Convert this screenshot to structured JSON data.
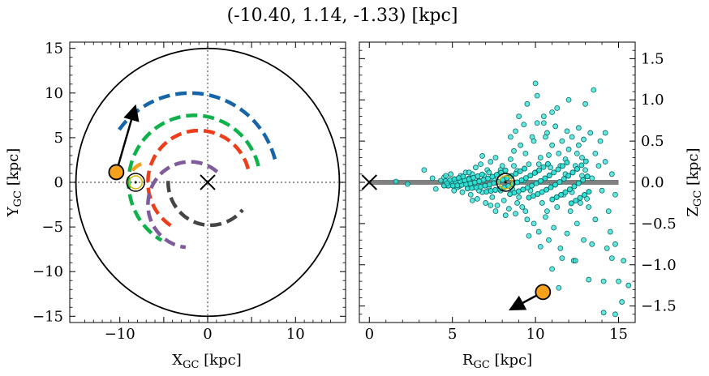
{
  "chart_data": [
    {
      "type": "line",
      "panel": "left",
      "suptitle": "(-10.40, 1.14, -1.33) [kpc]",
      "xlabel": "X",
      "xlabel_sub": "GC",
      "xlabel_unit": " [kpc]",
      "ylabel": "Y",
      "ylabel_sub": "GC",
      "ylabel_unit": " [kpc]",
      "xlim": [
        -15.7,
        15.7
      ],
      "ylim": [
        -15.7,
        15.7
      ],
      "xticks": [
        -10,
        -5,
        0,
        5,
        10
      ],
      "yticks": [
        -15,
        -10,
        -5,
        0,
        5,
        10,
        15
      ],
      "xtick_labels": [
        "−10",
        "0",
        "10"
      ],
      "ytick_labels": [
        "15",
        "10",
        "5",
        "0",
        "−5",
        "−10",
        "−15"
      ],
      "boundary_circle_radius": 15,
      "crosshair_lines": {
        "x": 0,
        "y": 0,
        "style": "dotted"
      },
      "galactic_center_marker": {
        "x": 0,
        "y": 0,
        "marker": "X"
      },
      "sun_marker": {
        "x": -8.2,
        "y": 0,
        "marker": "circled-dot"
      },
      "object_marker": {
        "x": -10.4,
        "y": 1.14,
        "color": "#f5a11c"
      },
      "velocity_arrow": {
        "from": [
          -10.4,
          1.14
        ],
        "to": [
          -8.3,
          8.3
        ]
      },
      "series": [
        {
          "color": "#1565a8",
          "r": 10.0,
          "theta_deg": [
            15,
            145
          ],
          "center": [
            -2.0,
            0
          ]
        },
        {
          "color": "#0fb24a",
          "r": 7.5,
          "theta_deg": [
            14,
            240
          ],
          "center": [
            -1.5,
            0
          ]
        },
        {
          "color": "#f5a11c",
          "r": 2.2,
          "theta_deg": [
            110,
            150
          ],
          "center": [
            -6.8,
            0
          ]
        },
        {
          "color": "#ee3d1a",
          "r": 5.8,
          "theta_deg": [
            15,
            240
          ],
          "center": [
            -1.0,
            0
          ]
        },
        {
          "color": "#7f5a9c",
          "r": 4.8,
          "theta_deg": [
            50,
            265
          ],
          "center": [
            -2.0,
            -2.5
          ]
        },
        {
          "color": "#454545",
          "r": 4.8,
          "theta_deg": [
            178,
            320
          ],
          "center": [
            0.3,
            0
          ]
        }
      ]
    },
    {
      "type": "scatter",
      "panel": "right",
      "xlabel": "R",
      "xlabel_sub": "GC",
      "xlabel_unit": " [kpc]",
      "ylabel": "Z",
      "ylabel_sub": "GC",
      "ylabel_unit": " [kpc]",
      "xlim": [
        -0.6,
        16.0
      ],
      "ylim": [
        -1.7,
        1.7
      ],
      "xticks": [
        0,
        5,
        10,
        15
      ],
      "yticks": [
        -1.5,
        -1.0,
        -0.5,
        0.0,
        0.5,
        1.0,
        1.5
      ],
      "xtick_labels": [
        "0",
        "5",
        "10",
        "15"
      ],
      "ytick_labels": [
        "1.5",
        "1.0",
        "0.5",
        "0.0",
        "−0.5",
        "−1.0",
        "−1.5"
      ],
      "disk_line": {
        "x": [
          0,
          15
        ],
        "y": 0,
        "color": "#808080"
      },
      "galactic_center_marker": {
        "x": 0,
        "y": 0,
        "marker": "X"
      },
      "sun_marker": {
        "x": 8.2,
        "y": 0,
        "marker": "circled-dot"
      },
      "object_marker": {
        "x": 10.45,
        "y": -1.33,
        "color": "#f5a11c"
      },
      "velocity_arrow": {
        "from": [
          10.45,
          -1.33
        ],
        "to": [
          8.6,
          -1.53
        ]
      },
      "point_color": "#2ee0d6",
      "point_edge": "#126b66",
      "points": [
        [
          1.6,
          0.01
        ],
        [
          2.3,
          -0.02
        ],
        [
          3.3,
          0.15
        ],
        [
          3.8,
          0.05
        ],
        [
          4.0,
          -0.08
        ],
        [
          4.3,
          0.02
        ],
        [
          4.5,
          0.06
        ],
        [
          4.7,
          -0.04
        ],
        [
          4.9,
          0.1
        ],
        [
          5.1,
          -0.1
        ],
        [
          5.2,
          0.03
        ],
        [
          5.4,
          -0.05
        ],
        [
          5.5,
          0.08
        ],
        [
          5.6,
          -0.12
        ],
        [
          5.7,
          0.0
        ],
        [
          5.8,
          0.12
        ],
        [
          5.9,
          -0.02
        ],
        [
          6.0,
          0.05
        ],
        [
          6.1,
          -0.15
        ],
        [
          6.2,
          0.1
        ],
        [
          6.3,
          -0.06
        ],
        [
          6.4,
          0.18
        ],
        [
          6.5,
          -0.2
        ],
        [
          6.6,
          0.02
        ],
        [
          6.7,
          0.22
        ],
        [
          6.8,
          -0.12
        ],
        [
          6.9,
          0.08
        ],
        [
          7.0,
          -0.25
        ],
        [
          7.1,
          0.15
        ],
        [
          7.2,
          -0.05
        ],
        [
          7.3,
          0.25
        ],
        [
          7.4,
          -0.18
        ],
        [
          7.5,
          0.03
        ],
        [
          7.6,
          0.3
        ],
        [
          7.7,
          -0.28
        ],
        [
          7.8,
          0.1
        ],
        [
          7.9,
          -0.1
        ],
        [
          8.0,
          0.2
        ],
        [
          8.1,
          -0.22
        ],
        [
          8.3,
          0.06
        ],
        [
          8.4,
          -0.32
        ],
        [
          8.5,
          0.28
        ],
        [
          8.6,
          -0.08
        ],
        [
          8.7,
          0.38
        ],
        [
          8.8,
          -0.38
        ],
        [
          8.9,
          0.14
        ],
        [
          9.0,
          -0.18
        ],
        [
          9.1,
          0.45
        ],
        [
          9.2,
          -0.3
        ],
        [
          9.3,
          0.02
        ],
        [
          9.4,
          0.35
        ],
        [
          9.5,
          -0.45
        ],
        [
          9.6,
          0.22
        ],
        [
          9.7,
          -0.1
        ],
        [
          9.8,
          0.55
        ],
        [
          9.9,
          -0.5
        ],
        [
          10.0,
          0.12
        ],
        [
          10.1,
          0.72
        ],
        [
          10.2,
          -0.6
        ],
        [
          10.3,
          0.3
        ],
        [
          10.4,
          -0.25
        ],
        [
          10.5,
          0.8
        ],
        [
          10.6,
          -0.42
        ],
        [
          10.7,
          0.6
        ],
        [
          10.8,
          -0.7
        ],
        [
          10.9,
          0.18
        ],
        [
          11.0,
          0.45
        ],
        [
          11.1,
          -0.55
        ],
        [
          11.2,
          0.68
        ],
        [
          11.3,
          -0.3
        ],
        [
          11.4,
          0.35
        ],
        [
          11.5,
          -0.8
        ],
        [
          11.6,
          0.5
        ],
        [
          11.7,
          -0.15
        ],
        [
          11.8,
          0.28
        ],
        [
          11.9,
          -0.62
        ],
        [
          12.0,
          0.4
        ],
        [
          12.1,
          -0.35
        ],
        [
          12.2,
          0.55
        ],
        [
          12.3,
          -0.95
        ],
        [
          12.4,
          0.2
        ],
        [
          12.5,
          -0.5
        ],
        [
          12.6,
          0.45
        ],
        [
          12.7,
          -0.25
        ],
        [
          12.8,
          0.3
        ],
        [
          12.9,
          -0.7
        ],
        [
          13.0,
          0.15
        ],
        [
          13.2,
          -0.3
        ],
        [
          13.4,
          0.05
        ],
        [
          13.6,
          -0.45
        ],
        [
          13.8,
          0.2
        ],
        [
          14.0,
          -0.1
        ],
        [
          14.2,
          0.25
        ],
        [
          14.5,
          -0.6
        ],
        [
          14.8,
          -0.15
        ],
        [
          9.0,
          0.8
        ],
        [
          9.5,
          0.95
        ],
        [
          10.0,
          1.2
        ],
        [
          10.1,
          1.05
        ],
        [
          13.5,
          1.12
        ],
        [
          13.0,
          0.95
        ],
        [
          12.0,
          1.0
        ],
        [
          10.5,
          0.72
        ],
        [
          11.0,
          0.85
        ],
        [
          14.2,
          0.6
        ],
        [
          12.4,
          -0.95
        ],
        [
          13.4,
          -0.75
        ],
        [
          14.3,
          -0.8
        ],
        [
          14.6,
          -0.92
        ],
        [
          14.8,
          -0.75
        ],
        [
          15.3,
          -0.95
        ],
        [
          15.0,
          -1.2
        ],
        [
          15.6,
          -1.25
        ],
        [
          14.1,
          -1.2
        ],
        [
          13.2,
          -1.18
        ],
        [
          14.1,
          -1.58
        ],
        [
          15.2,
          -1.45
        ],
        [
          14.8,
          -1.6
        ],
        [
          11.4,
          -1.28
        ],
        [
          11.0,
          -1.05
        ],
        [
          8.5,
          0.55
        ],
        [
          8.8,
          0.62
        ],
        [
          9.3,
          0.7
        ],
        [
          8.2,
          -0.4
        ],
        [
          7.6,
          -0.35
        ],
        [
          7.3,
          -0.28
        ],
        [
          6.8,
          0.32
        ],
        [
          6.2,
          -0.22
        ],
        [
          9.6,
          -0.65
        ],
        [
          10.3,
          -0.78
        ],
        [
          11.6,
          -0.92
        ],
        [
          12.6,
          0.66
        ],
        [
          11.9,
          0.62
        ],
        [
          11.3,
          0.9
        ],
        [
          9.9,
          0.5
        ],
        [
          10.7,
          -0.35
        ],
        [
          11.8,
          0.1
        ],
        [
          12.2,
          -0.12
        ],
        [
          12.8,
          0.08
        ],
        [
          13.6,
          0.35
        ],
        [
          10.2,
          0.22
        ],
        [
          10.8,
          0.33
        ],
        [
          11.5,
          0.2
        ],
        [
          9.4,
          -0.35
        ],
        [
          8.9,
          -0.25
        ],
        [
          8.7,
          0.2
        ],
        [
          7.9,
          0.15
        ],
        [
          7.2,
          0.12
        ],
        [
          6.6,
          -0.1
        ],
        [
          6.0,
          0.12
        ],
        [
          5.3,
          -0.06
        ],
        [
          4.6,
          0.08
        ],
        [
          12.5,
          0.35
        ],
        [
          13.1,
          -0.2
        ],
        [
          13.9,
          0.5
        ],
        [
          14.6,
          0.1
        ],
        [
          14.4,
          -0.35
        ],
        [
          13.3,
          0.6
        ],
        [
          12.9,
          0.52
        ],
        [
          10.6,
          0.55
        ]
      ]
    }
  ]
}
